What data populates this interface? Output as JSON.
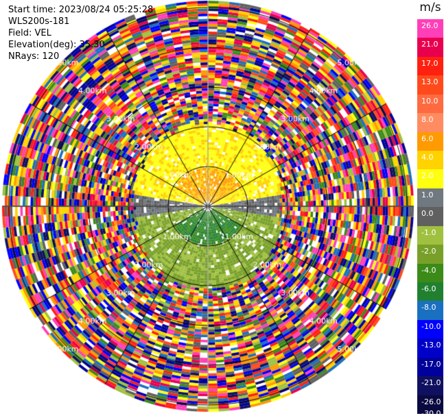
{
  "header": {
    "start_time": "Start time: 2023/08/24 05:25:28",
    "instrument": "WLS200s-181",
    "field": "Field: VEL",
    "elevation": "Elevation(deg): 35.30",
    "nrays": "NRays: 120"
  },
  "colorbar": {
    "unit": "m/s",
    "ticks": [
      "26.0",
      "21.0",
      "17.0",
      "13.0",
      "10.0",
      "8.0",
      "6.0",
      "4.0",
      "2.0",
      "1.0",
      "0.0",
      "-1.0",
      "-2.0",
      "-4.0",
      "-6.0",
      "-8.0",
      "-10.0",
      "-13.0",
      "-17.0",
      "-21.0",
      "-26.0",
      "-30.0"
    ],
    "colors": [
      "#ff3fb8",
      "#e8004e",
      "#ff2010",
      "#ff4a1c",
      "#ff6a40",
      "#ff8c60",
      "#ff9a00",
      "#ffd200",
      "#ffff10",
      "#707880",
      "#606060",
      "#a0c040",
      "#78a028",
      "#3c8a18",
      "#208030",
      "#1a70c0",
      "#0000ff",
      "#0000c8",
      "#00009a",
      "#101060",
      "#0a0a40"
    ]
  },
  "chart_data": {
    "type": "polar-ppi",
    "field": "VEL",
    "unit": "m/s",
    "elevation_deg": 35.3,
    "n_rays": 120,
    "range_ring_labels": [
      "1.00km",
      "1.00km",
      "1.00km",
      "1.00km",
      "2.00km",
      "2.00km",
      "2.00km",
      "2.00km",
      "3.00km",
      "3.00km",
      "3.00km",
      "3.00km",
      "4.00km",
      "4.00km",
      "4.00km",
      "4.00km",
      "5.00km",
      "5.00km",
      "5.00km",
      "5.00km"
    ],
    "velocity_min": -30,
    "velocity_max": 26,
    "pattern": "coherent near-range field: north sector +1 to +6 m/s, south sector -1 to -6 m/s, east-west axis near 0 m/s; noise beyond about 1.5 km"
  }
}
